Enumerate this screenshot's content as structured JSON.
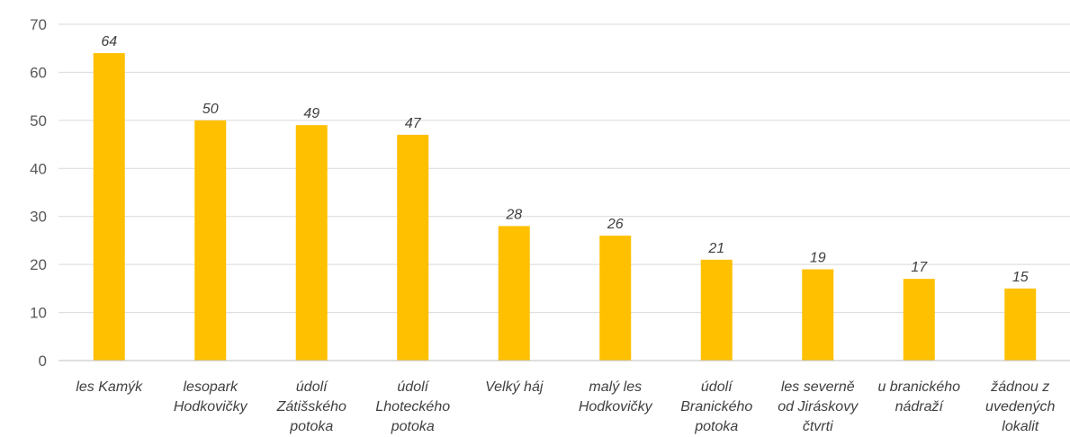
{
  "chart_data": {
    "type": "bar",
    "categories": [
      [
        "les Kamýk"
      ],
      [
        "lesopark",
        "Hodkovičky"
      ],
      [
        "údolí",
        "Zátišského",
        "potoka"
      ],
      [
        "údolí",
        "Lhoteckého",
        "potoka"
      ],
      [
        "Velký háj"
      ],
      [
        "malý les",
        "Hodkovičky"
      ],
      [
        "údolí",
        "Branického",
        "potoka"
      ],
      [
        "les severně",
        "od Jiráskovy",
        "čtvrti"
      ],
      [
        "u branického",
        "nádraží"
      ],
      [
        "žádnou z",
        "uvedených",
        "lokalit"
      ]
    ],
    "values": [
      64,
      50,
      49,
      47,
      28,
      26,
      21,
      19,
      17,
      15
    ],
    "ylim": [
      0,
      70
    ],
    "yticks": [
      0,
      10,
      20,
      30,
      40,
      50,
      60,
      70
    ],
    "grid": true,
    "legend": "none",
    "bar_color": "#FFC000",
    "title": "",
    "xlabel": "",
    "ylabel": ""
  }
}
